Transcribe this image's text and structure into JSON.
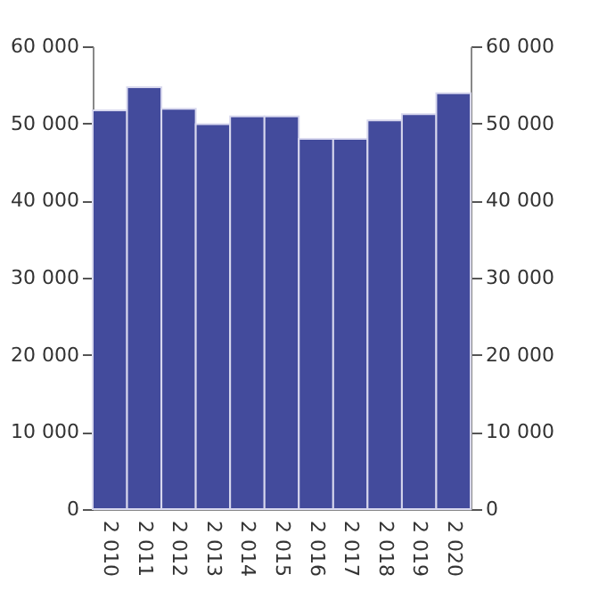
{
  "chart_data": {
    "type": "bar",
    "categories": [
      "2 010",
      "2 011",
      "2 012",
      "2 013",
      "2 014",
      "2 015",
      "2 016",
      "2 017",
      "2 018",
      "2 019",
      "2 020"
    ],
    "values": [
      51700,
      54700,
      51900,
      49900,
      50900,
      50900,
      48000,
      48000,
      50400,
      51200,
      53900
    ],
    "color": "#434b9c",
    "ylim": [
      0,
      60000
    ],
    "yticks": [
      0,
      {
        "value": 10000,
        "label": "10 000"
      },
      {
        "value": 20000,
        "label": "20 000"
      },
      {
        "value": 30000,
        "label": "30 000"
      },
      {
        "value": 40000,
        "label": "40 000"
      },
      {
        "value": 50000,
        "label": "50 000"
      },
      {
        "value": 60000,
        "label": "60 000"
      }
    ],
    "y2lim": [
      0,
      60000
    ],
    "y2ticks": [
      0,
      {
        "value": 10000,
        "label": "10 000"
      },
      {
        "value": 20000,
        "label": "20 000"
      },
      {
        "value": 30000,
        "label": "30 000"
      },
      {
        "value": 40000,
        "label": "40 000"
      },
      {
        "value": 50000,
        "label": "50 000"
      },
      {
        "value": 60000,
        "label": "60 000"
      }
    ],
    "grid": false
  }
}
